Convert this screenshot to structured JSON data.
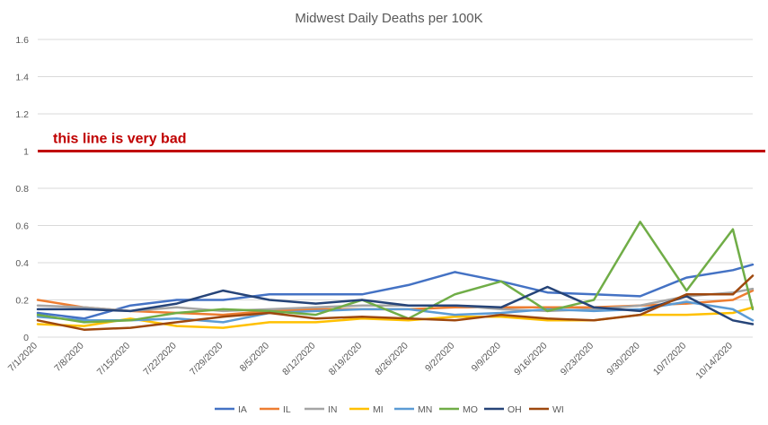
{
  "chart_data": {
    "type": "line",
    "title": "Midwest Daily Deaths per 100K",
    "ylim": [
      0,
      1.6
    ],
    "yticks": [
      "0",
      "0.2",
      "0.4",
      "0.6",
      "0.8",
      "1",
      "1.2",
      "1.4",
      "1.6"
    ],
    "ytick_values": [
      0,
      0.2,
      0.4,
      0.6,
      0.8,
      1,
      1.2,
      1.4,
      1.6
    ],
    "xlim": [
      "7/1/2020",
      "10/17/2020"
    ],
    "x_tick_labels": [
      "7/1/2020",
      "7/8/2020",
      "7/15/2020",
      "7/22/2020",
      "7/29/2020",
      "8/5/2020",
      "8/12/2020",
      "8/19/2020",
      "8/26/2020",
      "9/2/2020",
      "9/9/2020",
      "9/16/2020",
      "9/23/2020",
      "9/30/2020",
      "10/7/2020",
      "10/14/2020"
    ],
    "grid": "horizontal",
    "legend_position": "bottom",
    "reference_line": {
      "value": 1,
      "color": "#c00000",
      "label": "this line is very bad"
    },
    "x": [
      "7/1/2020",
      "7/8/2020",
      "7/15/2020",
      "7/22/2020",
      "7/29/2020",
      "8/5/2020",
      "8/12/2020",
      "8/19/2020",
      "8/26/2020",
      "9/2/2020",
      "9/9/2020",
      "9/16/2020",
      "9/23/2020",
      "9/30/2020",
      "10/7/2020",
      "10/14/2020",
      "10/17/2020"
    ],
    "series": [
      {
        "name": "IA",
        "color": "#4472c4",
        "values": [
          0.13,
          0.1,
          0.17,
          0.2,
          0.2,
          0.23,
          0.23,
          0.23,
          0.28,
          0.35,
          0.3,
          0.24,
          0.23,
          0.22,
          0.32,
          0.36,
          0.39
        ]
      },
      {
        "name": "IL",
        "color": "#ed7d31",
        "values": [
          0.2,
          0.16,
          0.14,
          0.13,
          0.12,
          0.14,
          0.15,
          0.15,
          0.15,
          0.16,
          0.16,
          0.16,
          0.16,
          0.17,
          0.18,
          0.2,
          0.25
        ]
      },
      {
        "name": "IN",
        "color": "#a5a5a5",
        "values": [
          0.17,
          0.16,
          0.14,
          0.16,
          0.14,
          0.15,
          0.16,
          0.17,
          0.17,
          0.17,
          0.15,
          0.14,
          0.15,
          0.17,
          0.22,
          0.24,
          0.26
        ]
      },
      {
        "name": "MI",
        "color": "#ffc000",
        "values": [
          0.07,
          0.06,
          0.1,
          0.06,
          0.05,
          0.08,
          0.08,
          0.1,
          0.09,
          0.11,
          0.11,
          0.09,
          0.09,
          0.12,
          0.12,
          0.13,
          0.16
        ]
      },
      {
        "name": "MN",
        "color": "#5b9bd5",
        "values": [
          0.11,
          0.09,
          0.09,
          0.1,
          0.08,
          0.13,
          0.14,
          0.15,
          0.15,
          0.12,
          0.13,
          0.15,
          0.14,
          0.15,
          0.19,
          0.15,
          0.09
        ]
      },
      {
        "name": "MO",
        "color": "#70ad47",
        "values": [
          0.12,
          0.08,
          0.09,
          0.13,
          0.15,
          0.14,
          0.12,
          0.2,
          0.1,
          0.23,
          0.3,
          0.14,
          0.2,
          0.62,
          0.25,
          0.58,
          0.15
        ]
      },
      {
        "name": "OH",
        "color": "#264478",
        "values": [
          0.15,
          0.15,
          0.14,
          0.18,
          0.25,
          0.2,
          0.18,
          0.2,
          0.17,
          0.17,
          0.16,
          0.27,
          0.16,
          0.14,
          0.22,
          0.09,
          0.07
        ]
      },
      {
        "name": "WI",
        "color": "#9e480e",
        "values": [
          0.09,
          0.04,
          0.05,
          0.08,
          0.11,
          0.13,
          0.1,
          0.11,
          0.1,
          0.09,
          0.12,
          0.1,
          0.09,
          0.12,
          0.23,
          0.23,
          0.33
        ]
      }
    ]
  }
}
